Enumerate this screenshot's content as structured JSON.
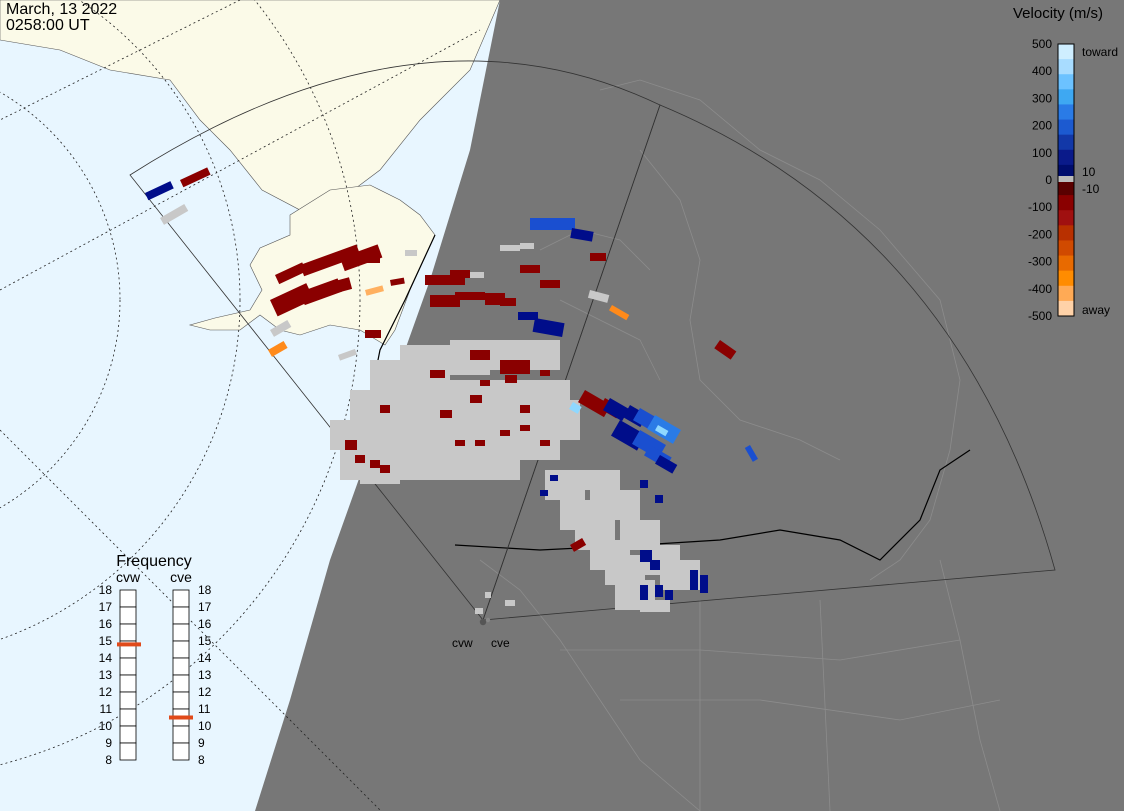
{
  "header": {
    "date": "March, 13 2022",
    "time": "0258:00 UT"
  },
  "colorbar": {
    "title": "Velocity (m/s)",
    "ticks": [
      "500",
      "400",
      "300",
      "200",
      "100",
      "0",
      "-100",
      "-200",
      "-300",
      "-400",
      "-500"
    ],
    "toward_label": "toward",
    "away_label": "away",
    "plus10": "10",
    "minus10": "-10",
    "colors_top_to_bottom": [
      "#cfeeff",
      "#a8dcff",
      "#6cc2ff",
      "#3ea8f2",
      "#2a7be6",
      "#1c5ad0",
      "#1238a8",
      "#0a1a8a",
      "#000d6e",
      "#5a0000",
      "#8a0000",
      "#a01010",
      "#b83000",
      "#d04a00",
      "#e86a00",
      "#ff8c00",
      "#ffaa55",
      "#ffd2a8"
    ]
  },
  "frequency": {
    "title": "Frequency",
    "radars": [
      "cvw",
      "cve"
    ],
    "scale": [
      "18",
      "17",
      "16",
      "15",
      "14",
      "13",
      "12",
      "11",
      "10",
      "9",
      "8"
    ],
    "cvw_value": 14.8,
    "cve_value": 10.5,
    "marker_color": "#e04a1a"
  },
  "radar_sites": [
    "cvw",
    "cve"
  ],
  "map_colors": {
    "ocean": "#e8f6ff",
    "land": "#fbfae8",
    "night": "#777777",
    "ionospheric_scatter": "#c8c8c8"
  }
}
